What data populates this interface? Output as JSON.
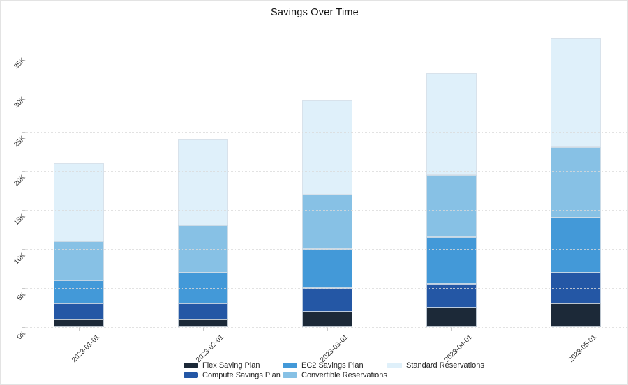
{
  "title": "Savings Over Time",
  "chart_data": {
    "type": "bar",
    "stacked": true,
    "title": "Savings Over Time",
    "xlabel": "",
    "ylabel": "",
    "categories": [
      "2023-01-01",
      "2023-02-01",
      "2023-03-01",
      "2023-04-01",
      "2023-05-01"
    ],
    "series": [
      {
        "name": "Flex Saving Plan",
        "color": "#1c2938",
        "values": [
          1000,
          1000,
          2000,
          2500,
          3000
        ]
      },
      {
        "name": "Compute Savings Plan",
        "color": "#2457a5",
        "values": [
          2000,
          2000,
          3000,
          3000,
          4000
        ]
      },
      {
        "name": "EC2 Savings Plan",
        "color": "#4399d8",
        "values": [
          3000,
          4000,
          5000,
          6000,
          7000
        ]
      },
      {
        "name": "Convertible Reservations",
        "color": "#87c1e5",
        "values": [
          5000,
          6000,
          7000,
          8000,
          9000
        ]
      },
      {
        "name": "Standard Reservations",
        "color": "#dff0fa",
        "values": [
          10000,
          11000,
          12000,
          13000,
          14000
        ]
      }
    ],
    "totals": [
      21000,
      24000,
      29000,
      32500,
      37000
    ],
    "ylim": [
      0,
      37500
    ],
    "yticks": [
      {
        "value": 0,
        "label": "0K"
      },
      {
        "value": 5000,
        "label": "5K"
      },
      {
        "value": 10000,
        "label": "10K"
      },
      {
        "value": 15000,
        "label": "15K"
      },
      {
        "value": 20000,
        "label": "20K"
      },
      {
        "value": 25000,
        "label": "25K"
      },
      {
        "value": 30000,
        "label": "30K"
      },
      {
        "value": 35000,
        "label": "35K"
      }
    ],
    "grid": true,
    "gridline_style": "dotted",
    "tick_label_rotation": -45,
    "legend_position": "bottom",
    "colors": {
      "background": "#ffffff",
      "gridline": "#dbdbdb",
      "tick": "#c9c9c9",
      "text": "#2b2b2b",
      "title_text": "#111111"
    }
  }
}
